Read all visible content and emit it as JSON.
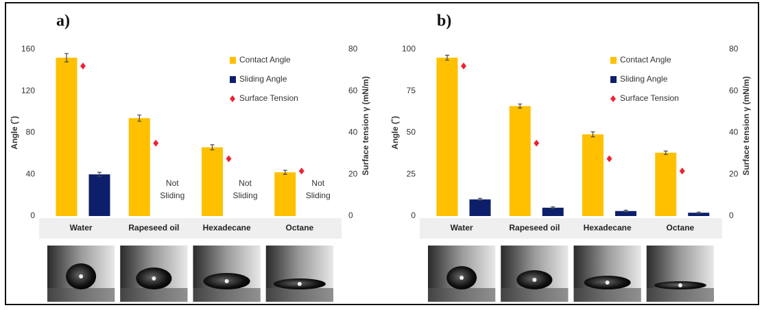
{
  "chart_data": [
    {
      "type": "bar",
      "label": "a)",
      "categories": [
        "Water",
        "Rapeseed oil",
        "Hexadecane",
        "Octane"
      ],
      "y_label": "Angle (˚)",
      "y2_label": "Surface tension γ (mN/m)",
      "series": [
        {
          "name": "Contact Angle",
          "color": "#ffc000",
          "values": [
            152,
            94,
            66,
            42
          ],
          "errors": [
            4,
            3,
            2.5,
            2
          ]
        },
        {
          "name": "Sliding Angle",
          "color": "#0d1f6b",
          "values": [
            40,
            null,
            null,
            null
          ],
          "errors": [
            2,
            null,
            null,
            null
          ]
        },
        {
          "name": "Surface Tension",
          "color": "#ee2233",
          "marker": "diamond",
          "axis": "y2",
          "values": [
            72,
            35,
            27.5,
            21.6
          ]
        }
      ],
      "annotations": [
        null,
        "Not Sliding",
        "Not Sliding",
        "Not Sliding"
      ],
      "ylim": [
        0,
        160
      ],
      "yticks": [
        0,
        40,
        80,
        120,
        160
      ],
      "y2lim": [
        0,
        80
      ],
      "y2ticks": [
        0,
        20,
        40,
        60,
        80
      ],
      "legend": "upper right"
    },
    {
      "type": "bar",
      "label": "b)",
      "categories": [
        "Water",
        "Rapeseed oil",
        "Hexadecane",
        "Octane"
      ],
      "y_label": "Angle (˚)",
      "y2_label": "Surface tension γ (mN/m)",
      "series": [
        {
          "name": "Contact Angle",
          "color": "#ffc000",
          "values": [
            95,
            66,
            49,
            38
          ],
          "errors": [
            1.5,
            1.2,
            1.5,
            1
          ]
        },
        {
          "name": "Sliding Angle",
          "color": "#0d1f6b",
          "values": [
            10,
            5,
            3,
            2
          ],
          "errors": [
            0.6,
            0.5,
            0.5,
            0.4
          ]
        },
        {
          "name": "Surface Tension",
          "color": "#ee2233",
          "marker": "diamond",
          "axis": "y2",
          "values": [
            72,
            35,
            27.5,
            21.6
          ]
        }
      ],
      "ylim": [
        0,
        100
      ],
      "yticks": [
        0,
        25,
        50,
        75,
        100
      ],
      "y2lim": [
        0,
        80
      ],
      "y2ticks": [
        0,
        20,
        40,
        60,
        80
      ],
      "legend": "upper right"
    }
  ]
}
